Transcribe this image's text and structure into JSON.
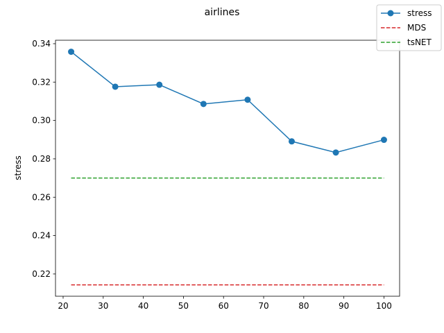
{
  "chart_data": {
    "type": "line",
    "title": "airlines",
    "xlabel": "",
    "ylabel": "stress",
    "x": [
      22,
      33,
      44,
      55,
      66,
      77,
      88,
      100
    ],
    "xlim": [
      18.1,
      103.9
    ],
    "ylim": [
      0.2084,
      0.3418
    ],
    "xticks": [
      20,
      30,
      40,
      50,
      60,
      70,
      80,
      90,
      100
    ],
    "yticks": [
      0.22,
      0.24,
      0.26,
      0.28,
      0.3,
      0.32,
      0.34
    ],
    "xtick_labels": [
      "20",
      "30",
      "40",
      "50",
      "60",
      "70",
      "80",
      "90",
      "100"
    ],
    "ytick_labels": [
      "0.22",
      "0.24",
      "0.26",
      "0.28",
      "0.30",
      "0.32",
      "0.34"
    ],
    "series": [
      {
        "name": "stress",
        "style": "solid-marker",
        "color": "#1f77b4",
        "values": [
          0.3358,
          0.3176,
          0.3186,
          0.3086,
          0.3108,
          0.2891,
          0.2833,
          0.2899
        ]
      },
      {
        "name": "MDS",
        "style": "dashed",
        "color": "#d62728",
        "values": [
          0.2143,
          0.2143,
          0.2143,
          0.2143,
          0.2143,
          0.2143,
          0.2143,
          0.2143
        ]
      },
      {
        "name": "tsNET",
        "style": "dashed",
        "color": "#2ca02c",
        "values": [
          0.27,
          0.27,
          0.27,
          0.27,
          0.27,
          0.27,
          0.27,
          0.27
        ]
      }
    ],
    "legend_position": "top-right",
    "grid": false
  }
}
